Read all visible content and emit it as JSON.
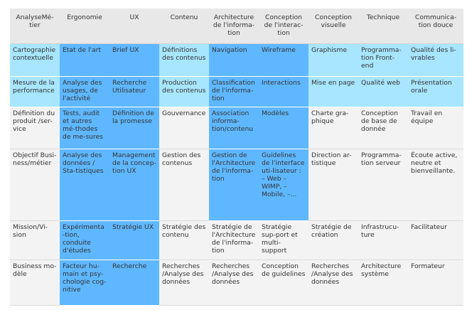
{
  "headers": [
    "AnalyseMé-tier",
    "Ergonomie",
    "UX",
    "Contenu",
    "Architecture de l'informa-tion",
    "Conception de l'interac-tion",
    "Conception visuelle",
    "Technique",
    "Communica-tion douce"
  ],
  "rows": [
    [
      "Cartographie contextuelle",
      "Etat de l'art",
      "Brief UX",
      "Définitions des contenus",
      "Navigation",
      "Wireframe",
      "Graphisme",
      "Programma-tion Front-end",
      "Qualité des li-vrables"
    ],
    [
      "Mesure de la performance",
      "Analyse des usages, de l'activité",
      "Recherche Utilisateur",
      "Production des contenus",
      "Classification de l'informa-tion",
      "Interactions",
      "Mise en page",
      "Qualité web",
      "Présentation orale"
    ],
    [
      "Définition du produit /ser-vice",
      "Tests, audit et autres mé-thodes de me-sures",
      "Définition de la promesse",
      "Gouvernance",
      "Association informa-tion/contenu",
      "Modèles",
      "Charte gra-phique",
      "Conception de base de donnée",
      "Travail en équipe"
    ],
    [
      "Objectif Busi-ness/métier",
      "Analyse des données / Sta-tistiques",
      "Management de la concep-tion UX",
      "Gestion des contenus",
      "Gestion de l'Architecture de l'informa-tion",
      "Guidelines de l'interface uti-lisateur : – Web – WIMP, – Mobile, –...",
      "Direction ar-tistique",
      "Programma-tion serveur",
      "Écoute active, neutre et bienveillante."
    ],
    [
      "Mission/Vi-sion",
      "Expérimenta-tion, conduite d'études",
      "Stratégie UX",
      "Stratégie des contenu",
      "Stratégie de l'Architecture de l'informa-tion",
      "Stratégie sup-port et multi-support",
      "Stratégie de création",
      "Infrastrucu-ture",
      "Facilitateur"
    ],
    [
      "Business mo-dèle",
      "Facteur hu-main et psy-chologie cog-nitive",
      "Recherche",
      "Recherches /Analyse des données",
      "Recherches /Analyse des données",
      "Conception de guidelines",
      "Recherches /Analyse des données",
      "Architecture système",
      "Formateur"
    ]
  ],
  "colors": {
    "light_highlight": "#a8e6ff",
    "blue_highlight": "#5fb8ff",
    "plain": "#f3f3f3",
    "header": "#e8e8e8"
  }
}
